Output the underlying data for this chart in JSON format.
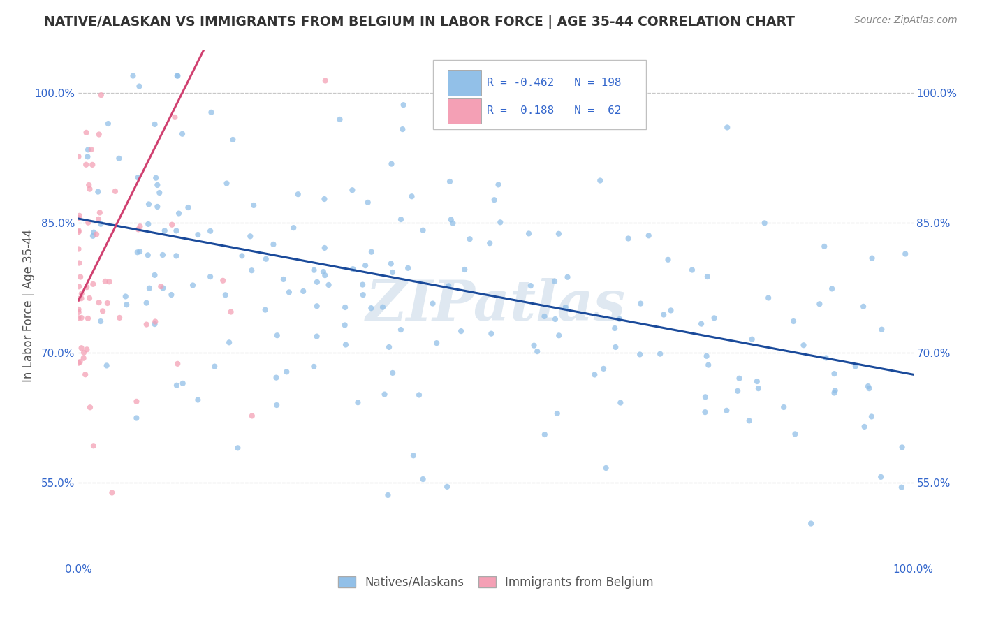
{
  "title": "NATIVE/ALASKAN VS IMMIGRANTS FROM BELGIUM IN LABOR FORCE | AGE 35-44 CORRELATION CHART",
  "source": "Source: ZipAtlas.com",
  "ylabel": "In Labor Force | Age 35-44",
  "blue_color": "#92C0E8",
  "pink_color": "#F4A0B5",
  "blue_line_color": "#1A4A9A",
  "pink_line_color": "#D04070",
  "watermark": "ZIPatlas",
  "blue_r": -0.462,
  "pink_r": 0.188,
  "blue_n": 198,
  "pink_n": 62,
  "background_color": "#FFFFFF",
  "grid_color": "#C8C8C8",
  "y_tick_values": [
    0.55,
    0.7,
    0.85,
    1.0
  ],
  "ylim": [
    0.46,
    1.05
  ],
  "xlim": [
    0.0,
    1.0
  ]
}
